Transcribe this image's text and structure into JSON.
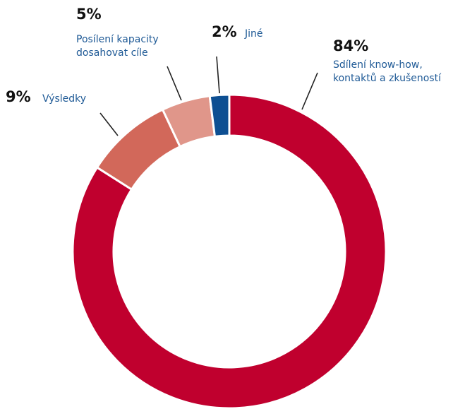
{
  "chart_data": {
    "type": "pie",
    "donut": true,
    "slices": [
      {
        "name": "Sdílení know-how, kontaktů a zkušeností",
        "value": 84,
        "pct_label": "84%",
        "label_lines": [
          "Sdílení know-how,",
          "kontaktů a zkušeností"
        ],
        "color": "#c0002e"
      },
      {
        "name": "Výsledky",
        "value": 9,
        "pct_label": "9%",
        "label_lines": [
          "Výsledky"
        ],
        "color": "#d2685a"
      },
      {
        "name": "Posílení kapacity dosahovat cíle",
        "value": 5,
        "pct_label": "5%",
        "label_lines": [
          "Posílení kapacity",
          "dosahovat cíle"
        ],
        "color": "#e0968a"
      },
      {
        "name": "Jiné",
        "value": 2,
        "pct_label": "2%",
        "label_lines": [
          "Jiné"
        ],
        "color": "#0d4f92"
      }
    ],
    "start": "top",
    "direction": "clockwise"
  }
}
